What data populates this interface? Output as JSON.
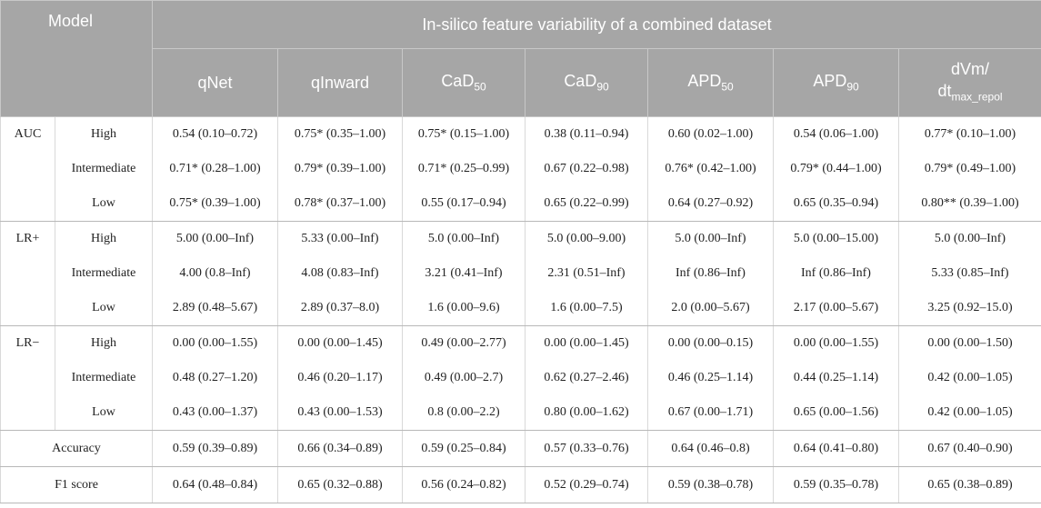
{
  "header": {
    "model": "Model",
    "group_title": "In-silico feature variability of a combined dataset",
    "columns": [
      {
        "main": "qNet",
        "sub": ""
      },
      {
        "main": "qInward",
        "sub": ""
      },
      {
        "main": "CaD",
        "sub": "50"
      },
      {
        "main": "CaD",
        "sub": "90"
      },
      {
        "main": "APD",
        "sub": "50"
      },
      {
        "main": "APD",
        "sub": "90"
      },
      {
        "main": "dVm/",
        "line2": "dt",
        "sub": "max_repol"
      }
    ]
  },
  "groups": [
    {
      "metric": "AUC",
      "rows": [
        {
          "level": "High",
          "cells": [
            "0.54 (0.10–0.72)",
            "0.75* (0.35–1.00)",
            "0.75* (0.15–1.00)",
            "0.38 (0.11–0.94)",
            "0.60 (0.02–1.00)",
            "0.54 (0.06–1.00)",
            "0.77* (0.10–1.00)"
          ]
        },
        {
          "level": "Intermediate",
          "cells": [
            "0.71* (0.28–1.00)",
            "0.79* (0.39–1.00)",
            "0.71* (0.25–0.99)",
            "0.67 (0.22–0.98)",
            "0.76* (0.42–1.00)",
            "0.79* (0.44–1.00)",
            "0.79* (0.49–1.00)"
          ]
        },
        {
          "level": "Low",
          "cells": [
            "0.75* (0.39–1.00)",
            "0.78* (0.37–1.00)",
            "0.55 (0.17–0.94)",
            "0.65 (0.22–0.99)",
            "0.64 (0.27–0.92)",
            "0.65 (0.35–0.94)",
            "0.80** (0.39–1.00)"
          ]
        }
      ]
    },
    {
      "metric": "LR+",
      "rows": [
        {
          "level": "High",
          "cells": [
            "5.00 (0.00–Inf)",
            "5.33 (0.00–Inf)",
            "5.0 (0.00–Inf)",
            "5.0 (0.00–9.00)",
            "5.0 (0.00–Inf)",
            "5.0 (0.00–15.00)",
            "5.0 (0.00–Inf)"
          ]
        },
        {
          "level": "Intermediate",
          "cells": [
            "4.00 (0.8–Inf)",
            "4.08 (0.83–Inf)",
            "3.21 (0.41–Inf)",
            "2.31 (0.51–Inf)",
            "Inf (0.86–Inf)",
            "Inf (0.86–Inf)",
            "5.33 (0.85–Inf)"
          ]
        },
        {
          "level": "Low",
          "cells": [
            "2.89 (0.48–5.67)",
            "2.89 (0.37–8.0)",
            "1.6 (0.00–9.6)",
            "1.6 (0.00–7.5)",
            "2.0 (0.00–5.67)",
            "2.17 (0.00–5.67)",
            "3.25 (0.92–15.0)"
          ]
        }
      ]
    },
    {
      "metric": "LR−",
      "rows": [
        {
          "level": "High",
          "cells": [
            "0.00 (0.00–1.55)",
            "0.00 (0.00–1.45)",
            "0.49 (0.00–2.77)",
            "0.00 (0.00–1.45)",
            "0.00 (0.00–0.15)",
            "0.00 (0.00–1.55)",
            "0.00 (0.00–1.50)"
          ]
        },
        {
          "level": "Intermediate",
          "cells": [
            "0.48 (0.27–1.20)",
            "0.46 (0.20–1.17)",
            "0.49 (0.00–2.7)",
            "0.62 (0.27–2.46)",
            "0.46 (0.25–1.14)",
            "0.44 (0.25–1.14)",
            "0.42 (0.00–1.05)"
          ]
        },
        {
          "level": "Low",
          "cells": [
            "0.43 (0.00–1.37)",
            "0.43 (0.00–1.53)",
            "0.8 (0.00–2.2)",
            "0.80 (0.00–1.62)",
            "0.67 (0.00–1.71)",
            "0.65 (0.00–1.56)",
            "0.42 (0.00–1.05)"
          ]
        }
      ]
    }
  ],
  "summary_rows": [
    {
      "label": "Accuracy",
      "cells": [
        "0.59 (0.39–0.89)",
        "0.66 (0.34–0.89)",
        "0.59 (0.25–0.84)",
        "0.57 (0.33–0.76)",
        "0.64 (0.46–0.8)",
        "0.64 (0.41–0.80)",
        "0.67 (0.40–0.90)"
      ]
    },
    {
      "label": "F1 score",
      "cells": [
        "0.64 (0.48–0.84)",
        "0.65 (0.32–0.88)",
        "0.56 (0.24–0.82)",
        "0.52 (0.29–0.74)",
        "0.59 (0.38–0.78)",
        "0.59 (0.35–0.78)",
        "0.65 (0.38–0.89)"
      ]
    }
  ]
}
